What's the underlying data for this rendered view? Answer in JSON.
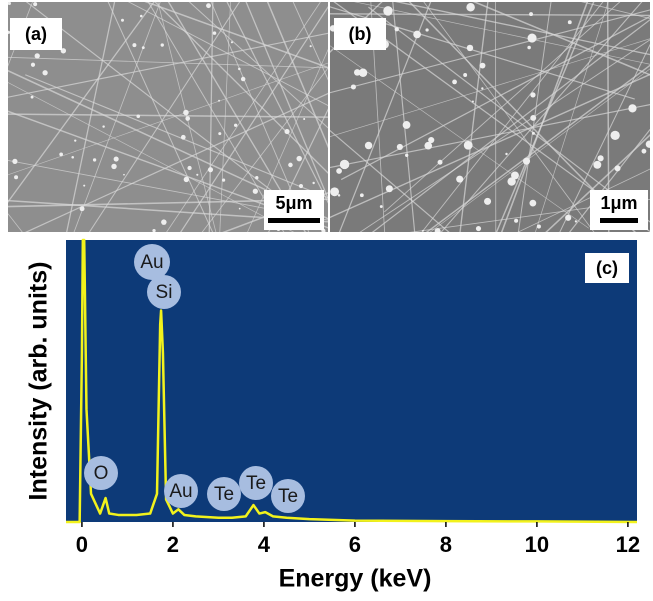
{
  "panels": [
    {
      "label": "(a)",
      "scale_bar": "5μm"
    },
    {
      "label": "(b)",
      "scale_bar": "1μm"
    }
  ],
  "chart_data": {
    "type": "line",
    "panel_label": "(c)",
    "xlabel": "Energy (keV)",
    "ylabel": "Intensity (arb. units)",
    "x": [
      -0.35,
      -0.05,
      0.0,
      0.02,
      0.05,
      0.1,
      0.2,
      0.4,
      0.52,
      0.6,
      0.8,
      1.0,
      1.2,
      1.5,
      1.65,
      1.72,
      1.74,
      1.78,
      1.85,
      2.0,
      2.12,
      2.25,
      2.5,
      3.0,
      3.3,
      3.6,
      3.77,
      3.9,
      4.03,
      4.2,
      4.5,
      5.0,
      6.0,
      8.0,
      10.0,
      12.2
    ],
    "values": [
      0,
      0,
      60,
      100,
      100,
      40,
      10,
      3,
      8.5,
      3,
      2.5,
      2.5,
      2.5,
      3,
      10,
      70,
      75,
      60,
      8,
      3,
      4.5,
      2.5,
      2,
      1.5,
      1.5,
      2,
      6,
      3,
      3.5,
      2,
      1.5,
      1,
      0.5,
      0.3,
      0.2,
      0
    ],
    "color": "#f2f21c",
    "background": "#0d3a78",
    "annotations": [
      "Au",
      "Si",
      "O",
      "Au",
      "Te",
      "Te",
      "Te"
    ],
    "xlim": [
      -0.35,
      12.2
    ],
    "xticks": [
      0,
      2,
      4,
      6,
      8,
      10,
      12
    ],
    "ylim": [
      0,
      100
    ]
  }
}
